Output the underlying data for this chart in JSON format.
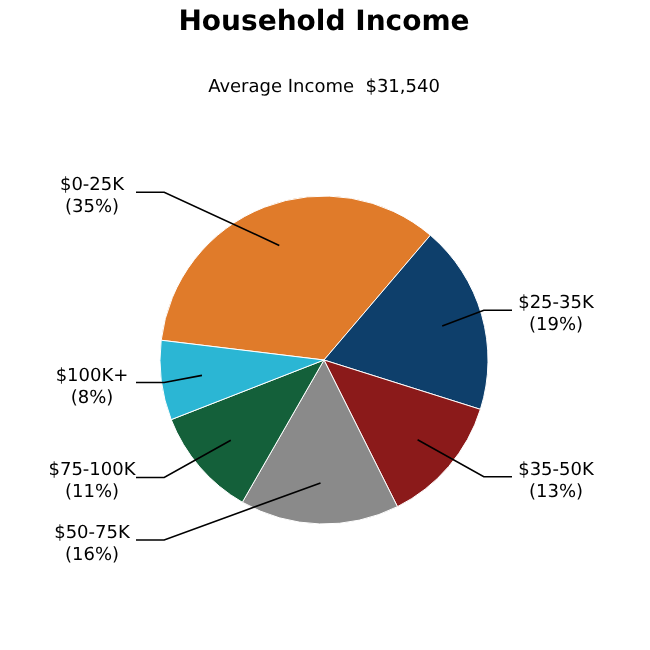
{
  "chart_data": {
    "type": "pie",
    "title": "Household Income",
    "subtitle": "Average Income  $31,540",
    "categories": [
      "$0-25K",
      "$25-35K",
      "$35-50K",
      "$50-75K",
      "$75-100K",
      "$100K+"
    ],
    "values": [
      35,
      19,
      13,
      16,
      11,
      8
    ],
    "value_labels": [
      "(35%)",
      "(19%)",
      "(13%)",
      "(16%)",
      "(11%)",
      "(8%)"
    ],
    "colors": [
      "#e07b2a",
      "#0e3f6b",
      "#8b1a1a",
      "#8a8a8a",
      "#14603a",
      "#2bb6d4"
    ]
  }
}
